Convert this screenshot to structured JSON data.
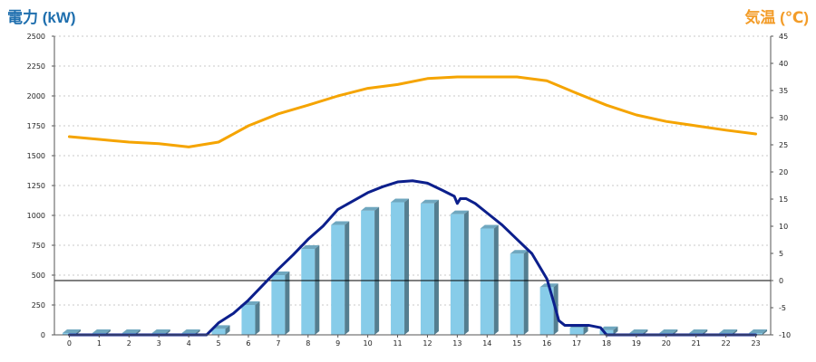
{
  "chart_data": {
    "type": "bar+line",
    "title_left": "電力 (kW)",
    "title_right": "気温 (℃)",
    "left_axis": {
      "min": 0,
      "max": 2500,
      "ticks": [
        0,
        250,
        500,
        750,
        1000,
        1250,
        1500,
        1750,
        2000,
        2250,
        2500
      ]
    },
    "right_axis": {
      "min": -10,
      "max": 45,
      "ticks": [
        -10,
        -5,
        0,
        5,
        10,
        15,
        20,
        25,
        30,
        35,
        40,
        45
      ]
    },
    "categories": [
      "0",
      "1",
      "2",
      "3",
      "4",
      "5",
      "6",
      "7",
      "8",
      "9",
      "10",
      "11",
      "12",
      "13",
      "14",
      "15",
      "16",
      "17",
      "18",
      "19",
      "20",
      "21",
      "22",
      "23"
    ],
    "series": [
      {
        "kind": "bar",
        "axis": "left",
        "color": "#87cce9",
        "values": [
          15,
          15,
          15,
          15,
          15,
          50,
          250,
          500,
          720,
          920,
          1040,
          1110,
          1100,
          1010,
          890,
          680,
          400,
          60,
          40,
          15,
          15,
          15,
          15,
          15
        ]
      },
      {
        "kind": "line",
        "axis": "left",
        "color": "#0c1f8c",
        "x": [
          0,
          1,
          2,
          3,
          4,
          4.6,
          5,
          5.5,
          6,
          6.5,
          7,
          7.5,
          8,
          8.5,
          9,
          9.5,
          10,
          10.5,
          11,
          11.5,
          12,
          12.5,
          12.9,
          13,
          13.1,
          13.3,
          13.6,
          14,
          14.5,
          15,
          15.5,
          16,
          16.2,
          16.4,
          16.6,
          17,
          17.4,
          17.8,
          18,
          19,
          20,
          21,
          22,
          23
        ],
        "values": [
          0,
          0,
          0,
          0,
          0,
          0,
          100,
          180,
          290,
          420,
          550,
          670,
          800,
          910,
          1050,
          1120,
          1190,
          1240,
          1280,
          1290,
          1270,
          1210,
          1160,
          1100,
          1140,
          1140,
          1100,
          1020,
          920,
          800,
          680,
          470,
          300,
          120,
          80,
          80,
          80,
          60,
          0,
          0,
          0,
          0,
          0,
          0
        ]
      },
      {
        "kind": "line",
        "axis": "right",
        "color": "#f5a400",
        "x": [
          0,
          1,
          2,
          3,
          4,
          5,
          6,
          7,
          8,
          9,
          10,
          11,
          12,
          13,
          14,
          15,
          16,
          17,
          18,
          19,
          20,
          21,
          22,
          23
        ],
        "values": [
          26.5,
          26.0,
          25.5,
          25.2,
          24.6,
          25.5,
          28.5,
          30.7,
          32.3,
          34.0,
          35.4,
          36.1,
          37.2,
          37.5,
          37.5,
          37.5,
          36.8,
          34.5,
          32.3,
          30.5,
          29.3,
          28.5,
          27.7,
          27.0
        ]
      }
    ],
    "zero_line_right_axis": 0,
    "grid": true
  }
}
